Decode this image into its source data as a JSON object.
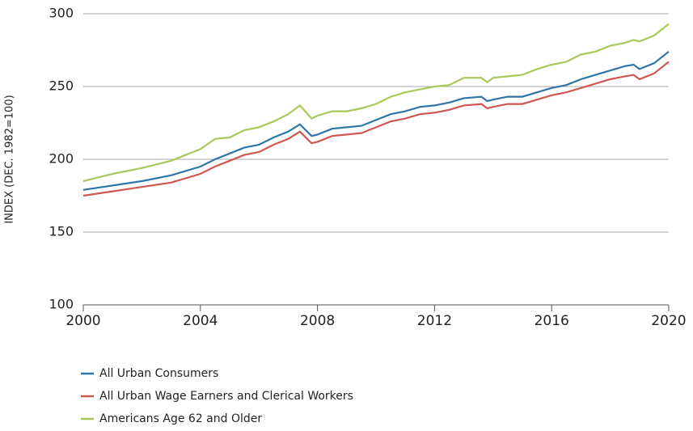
{
  "chart_data": {
    "type": "line",
    "y_label": "INDEX (DEC. 1982=100)",
    "x": [
      2000,
      2001,
      2002,
      2003,
      2004,
      2004.5,
      2005,
      2005.5,
      2006,
      2006.5,
      2007,
      2007.4,
      2007.8,
      2008,
      2008.5,
      2009,
      2009.5,
      2010,
      2010.5,
      2011,
      2011.5,
      2012,
      2012.5,
      2013,
      2013.6,
      2013.8,
      2014,
      2014.5,
      2015,
      2015.5,
      2016,
      2016.5,
      2017,
      2017.5,
      2018,
      2018.5,
      2018.8,
      2019,
      2019.5,
      2020
    ],
    "series": [
      {
        "name": "All Urban Consumers",
        "color": "#2e75a8",
        "values": [
          179,
          182,
          185,
          189,
          195,
          200,
          204,
          208,
          210,
          215,
          219,
          224,
          216,
          217,
          221,
          222,
          223,
          227,
          231,
          233,
          236,
          237,
          239,
          242,
          243,
          240,
          241,
          243,
          243,
          246,
          249,
          251,
          255,
          258,
          261,
          264,
          265,
          262,
          266,
          274
        ]
      },
      {
        "name": "All Urban Wage Earners and Clerical Workers",
        "color": "#d0574f",
        "values": [
          175,
          178,
          181,
          184,
          190,
          195,
          199,
          203,
          205,
          210,
          214,
          219,
          211,
          212,
          216,
          217,
          218,
          222,
          226,
          228,
          231,
          232,
          234,
          237,
          238,
          235,
          236,
          238,
          238,
          241,
          244,
          246,
          249,
          252,
          255,
          257,
          258,
          255,
          259,
          267
        ]
      },
      {
        "name": "Americans Age 62 and Older",
        "color": "#a9c85a",
        "values": [
          185,
          190,
          194,
          199,
          207,
          214,
          215,
          220,
          222,
          226,
          231,
          237,
          228,
          230,
          233,
          233,
          235,
          238,
          243,
          246,
          248,
          250,
          251,
          256,
          256,
          253,
          256,
          257,
          258,
          262,
          265,
          267,
          272,
          274,
          278,
          280,
          282,
          281,
          285,
          293
        ]
      }
    ],
    "xlim": [
      2000,
      2020
    ],
    "xticks": [
      2000,
      2004,
      2008,
      2012,
      2016,
      2020
    ],
    "ylim": [
      100,
      300
    ],
    "yticks": [
      100,
      150,
      200,
      250,
      300
    ],
    "grid": true,
    "legend": "bottom-left"
  }
}
